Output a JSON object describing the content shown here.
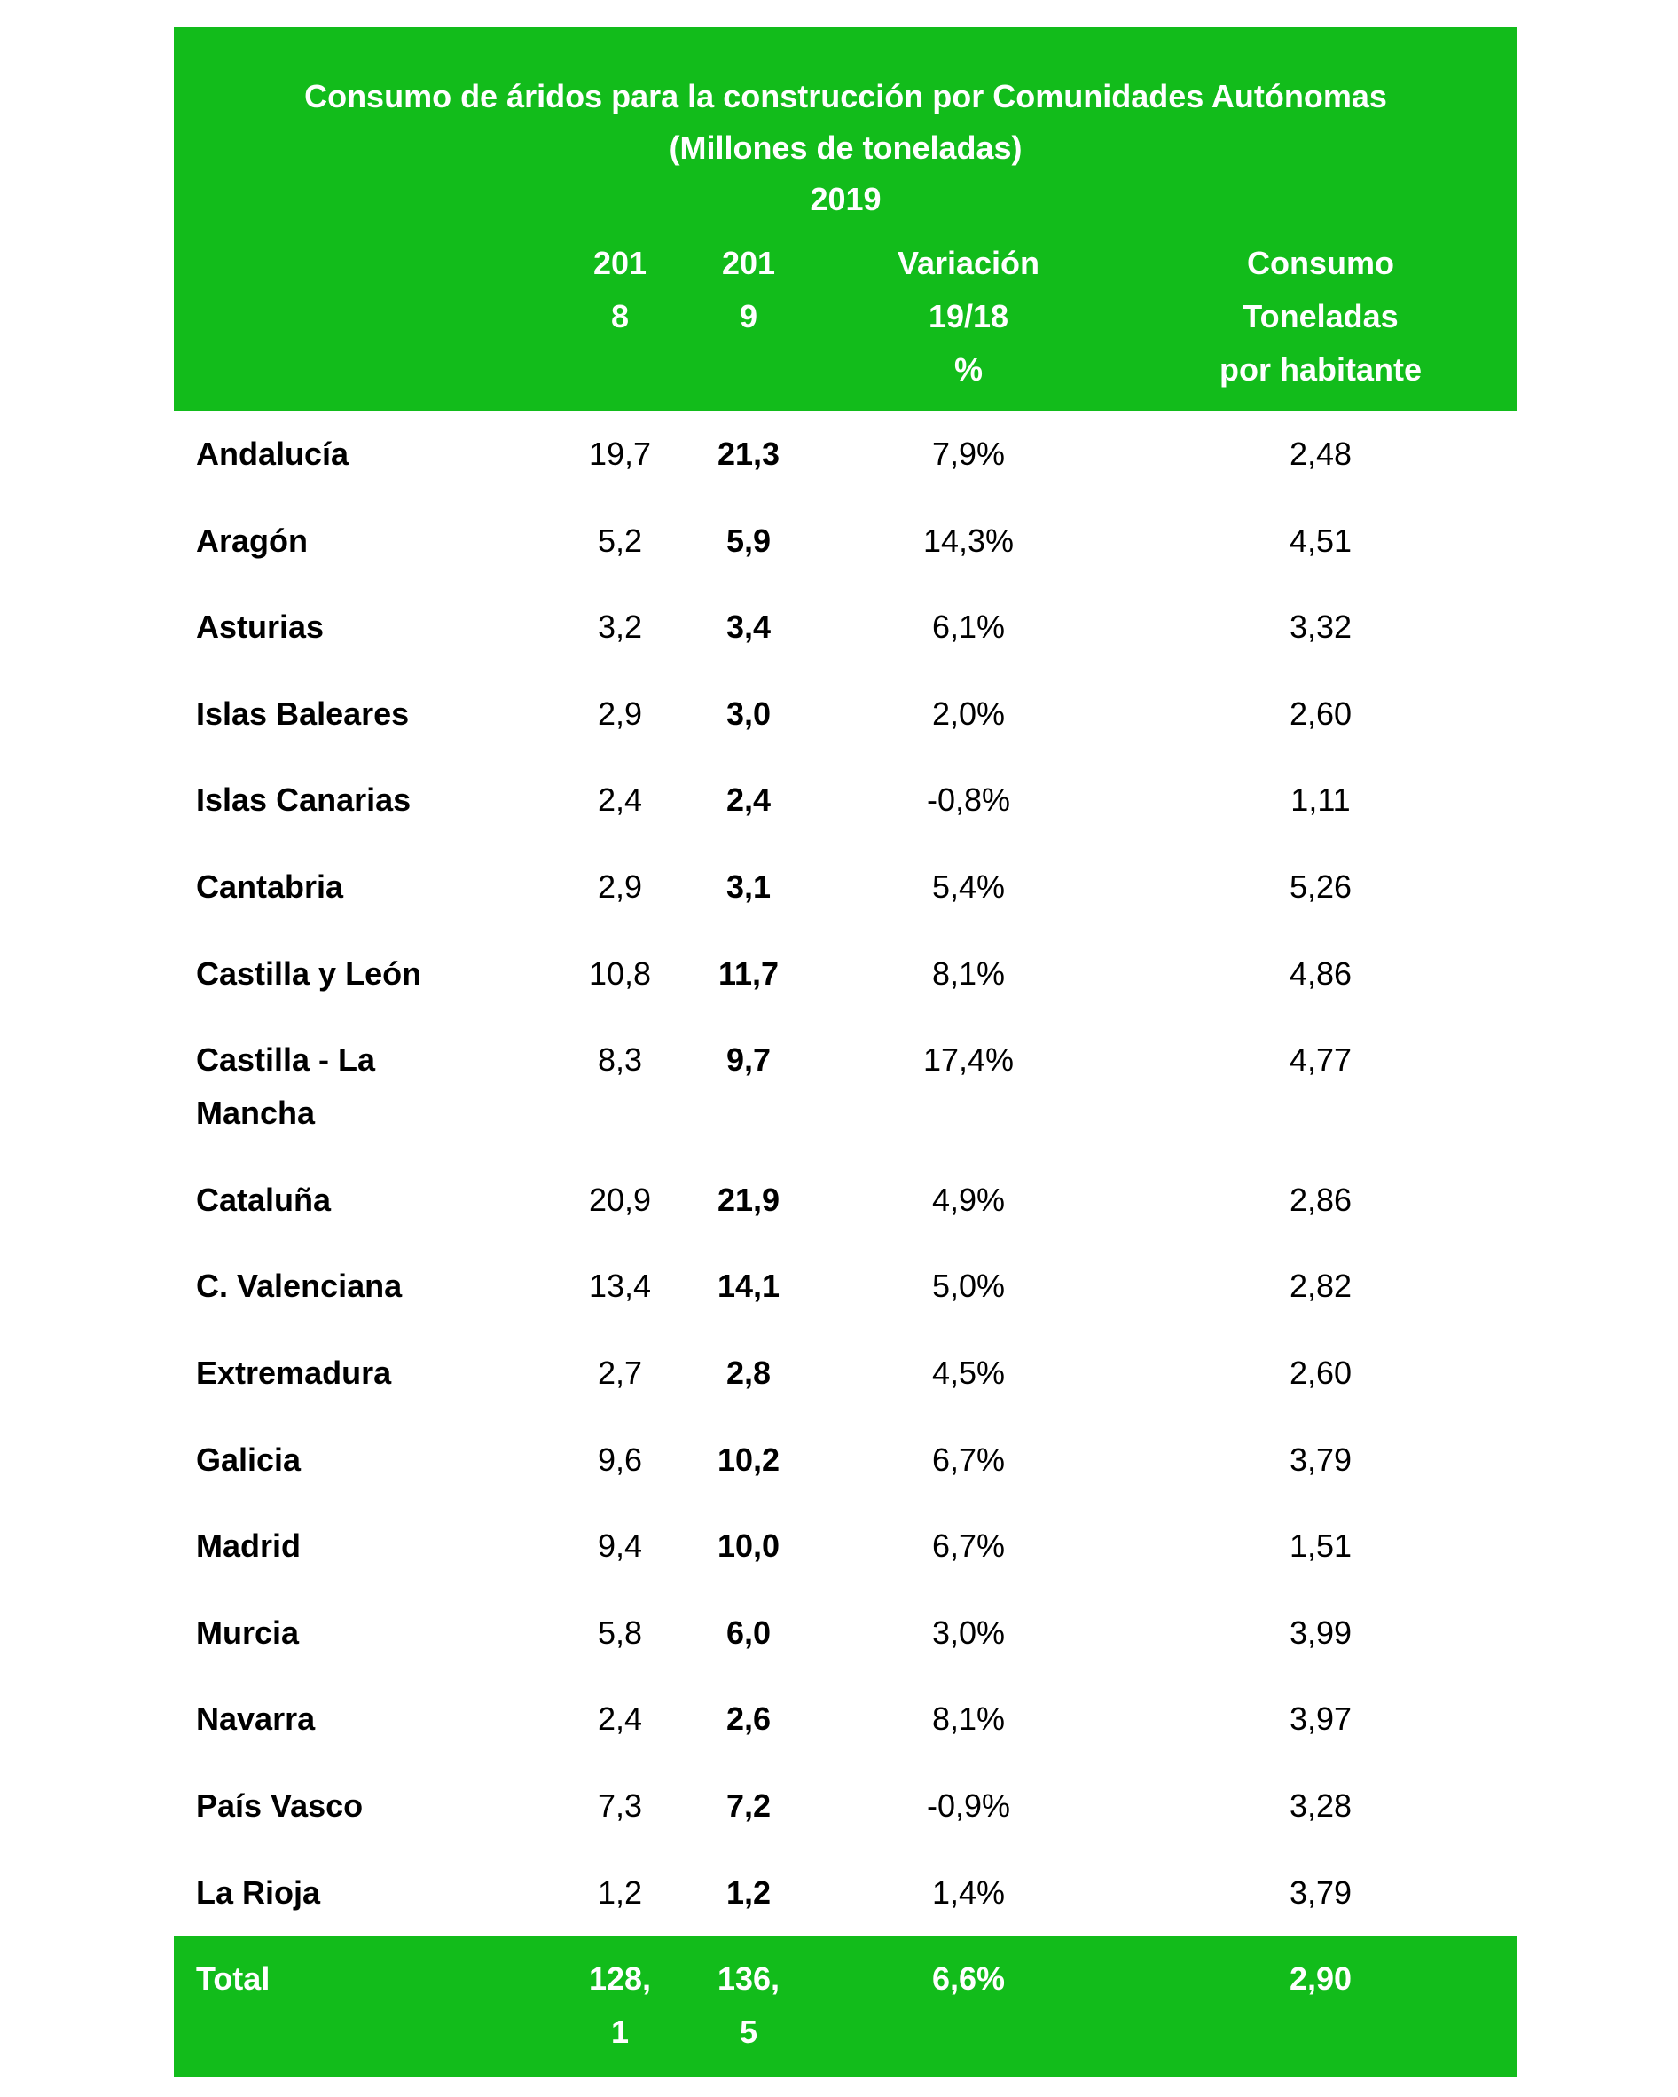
{
  "header": {
    "title_lines": [
      "Consumo de áridos para la construcción por Comunidades Autónomas",
      "(Millones de toneladas)",
      "2019"
    ],
    "columns": [
      "",
      "201\n8",
      "201\n9",
      "Variación\n19/18\n%",
      "Consumo\nToneladas\npor habitante"
    ]
  },
  "rows": [
    {
      "name": "Andalucía",
      "y2018": "19,7",
      "y2019": "21,3",
      "var": "7,9%",
      "per_capita": "2,48"
    },
    {
      "name": "Aragón",
      "y2018": "5,2",
      "y2019": "5,9",
      "var": "14,3%",
      "per_capita": "4,51"
    },
    {
      "name": "Asturias",
      "y2018": "3,2",
      "y2019": "3,4",
      "var": "6,1%",
      "per_capita": "3,32"
    },
    {
      "name": "Islas Baleares",
      "y2018": "2,9",
      "y2019": "3,0",
      "var": "2,0%",
      "per_capita": "2,60"
    },
    {
      "name": "Islas Canarias",
      "y2018": "2,4",
      "y2019": "2,4",
      "var": "-0,8%",
      "per_capita": "1,11"
    },
    {
      "name": "Cantabria",
      "y2018": "2,9",
      "y2019": "3,1",
      "var": "5,4%",
      "per_capita": "5,26"
    },
    {
      "name": "Castilla y León",
      "y2018": "10,8",
      "y2019": "11,7",
      "var": "8,1%",
      "per_capita": "4,86"
    },
    {
      "name": "Castilla - La\nMancha",
      "y2018": "8,3",
      "y2019": "9,7",
      "var": "17,4%",
      "per_capita": "4,77"
    },
    {
      "name": "Cataluña",
      "y2018": "20,9",
      "y2019": "21,9",
      "var": "4,9%",
      "per_capita": "2,86"
    },
    {
      "name": "C. Valenciana",
      "y2018": "13,4",
      "y2019": "14,1",
      "var": "5,0%",
      "per_capita": "2,82"
    },
    {
      "name": "Extremadura",
      "y2018": "2,7",
      "y2019": "2,8",
      "var": "4,5%",
      "per_capita": "2,60"
    },
    {
      "name": "Galicia",
      "y2018": "9,6",
      "y2019": "10,2",
      "var": "6,7%",
      "per_capita": "3,79"
    },
    {
      "name": "Madrid",
      "y2018": "9,4",
      "y2019": "10,0",
      "var": "6,7%",
      "per_capita": "1,51"
    },
    {
      "name": "Murcia",
      "y2018": "5,8",
      "y2019": "6,0",
      "var": "3,0%",
      "per_capita": "3,99"
    },
    {
      "name": "Navarra",
      "y2018": "2,4",
      "y2019": "2,6",
      "var": "8,1%",
      "per_capita": "3,97"
    },
    {
      "name": "País Vasco",
      "y2018": "7,3",
      "y2019": "7,2",
      "var": "-0,9%",
      "per_capita": "3,28"
    },
    {
      "name": "La Rioja",
      "y2018": "1,2",
      "y2019": "1,2",
      "var": "1,4%",
      "per_capita": "3,79"
    }
  ],
  "total": {
    "name": "Total",
    "y2018": "128,\n1",
    "y2019": "136,\n5",
    "var": "6,6%",
    "per_capita": "2,90"
  },
  "colors": {
    "header_green": "#12bc1b",
    "header_text": "#ffffff",
    "body_text": "#000000"
  }
}
